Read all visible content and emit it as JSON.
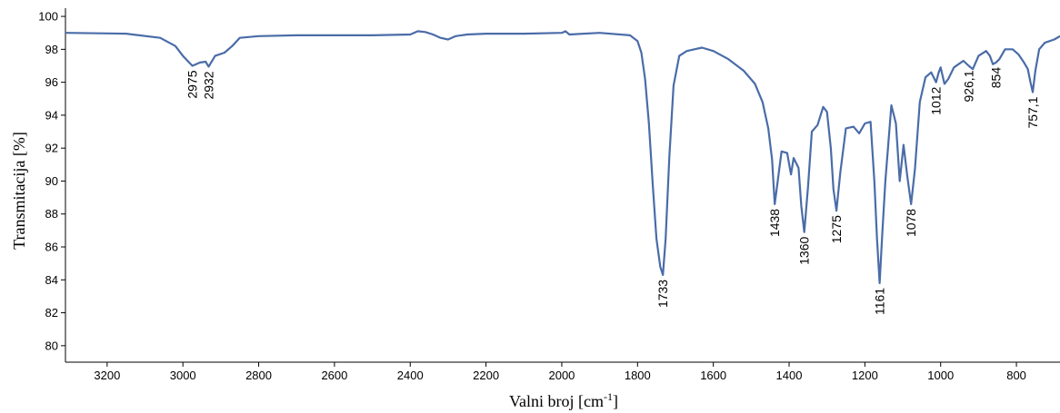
{
  "chart_data": {
    "type": "line",
    "title": "",
    "xlabel": "Valni broj [cm",
    "xlabel_sup": "-1",
    "xlabel_end": "]",
    "ylabel": "Transmitacija [%]",
    "xlim": [
      3310,
      685
    ],
    "ylim": [
      79,
      100.5
    ],
    "x_reversed": true,
    "grid": false,
    "x_ticks": [
      "3200",
      "3000",
      "2800",
      "2600",
      "2400",
      "2200",
      "2000",
      "1800",
      "1600",
      "1400",
      "1200",
      "1000",
      "800"
    ],
    "y_ticks": [
      "100",
      "98",
      "96",
      "94",
      "92",
      "90",
      "88",
      "86",
      "84",
      "82",
      "80"
    ],
    "series": [
      {
        "color": "#4a6ca8",
        "x": [
          3310,
          3150,
          3060,
          3020,
          3000,
          2975,
          2955,
          2940,
          2932,
          2915,
          2890,
          2870,
          2850,
          2800,
          2700,
          2600,
          2500,
          2400,
          2380,
          2360,
          2340,
          2320,
          2300,
          2280,
          2250,
          2200,
          2100,
          2000,
          1990,
          1980,
          1900,
          1820,
          1800,
          1790,
          1780,
          1770,
          1760,
          1750,
          1740,
          1733,
          1726,
          1716,
          1705,
          1690,
          1670,
          1650,
          1630,
          1600,
          1560,
          1520,
          1490,
          1470,
          1455,
          1445,
          1438,
          1430,
          1420,
          1405,
          1395,
          1388,
          1375,
          1368,
          1360,
          1350,
          1340,
          1325,
          1310,
          1300,
          1290,
          1283,
          1275,
          1265,
          1250,
          1230,
          1215,
          1200,
          1185,
          1175,
          1168,
          1161,
          1154,
          1146,
          1130,
          1118,
          1108,
          1098,
          1088,
          1078,
          1068,
          1055,
          1040,
          1025,
          1012,
          1005,
          1000,
          990,
          980,
          965,
          940,
          926,
          915,
          900,
          880,
          870,
          862,
          854,
          845,
          830,
          810,
          795,
          780,
          770,
          763,
          757,
          750,
          740,
          725,
          700,
          685
        ],
        "y": [
          99.0,
          98.95,
          98.7,
          98.2,
          97.6,
          97.0,
          97.2,
          97.25,
          96.95,
          97.6,
          97.8,
          98.2,
          98.7,
          98.8,
          98.85,
          98.85,
          98.85,
          98.9,
          99.1,
          99.05,
          98.9,
          98.7,
          98.6,
          98.8,
          98.9,
          98.95,
          98.95,
          99.0,
          99.1,
          98.9,
          99.0,
          98.85,
          98.5,
          97.8,
          96.2,
          93.5,
          89.8,
          86.5,
          84.8,
          84.3,
          86.5,
          91.5,
          95.8,
          97.6,
          97.9,
          98.0,
          98.1,
          97.9,
          97.4,
          96.7,
          95.9,
          94.8,
          93.2,
          91.3,
          88.6,
          90.0,
          91.8,
          91.7,
          90.4,
          91.4,
          90.8,
          88.5,
          86.9,
          89.7,
          93.0,
          93.4,
          94.5,
          94.2,
          92.0,
          89.5,
          88.2,
          90.5,
          93.2,
          93.3,
          92.9,
          93.5,
          93.6,
          90.0,
          86.5,
          83.8,
          86.8,
          90.0,
          94.6,
          93.5,
          90.0,
          92.2,
          90.3,
          88.6,
          90.7,
          94.8,
          96.3,
          96.6,
          96.0,
          96.6,
          96.9,
          95.9,
          96.2,
          96.9,
          97.3,
          97.0,
          96.8,
          97.6,
          97.9,
          97.6,
          97.1,
          97.2,
          97.4,
          98.0,
          98.0,
          97.7,
          97.2,
          96.8,
          96.0,
          95.4,
          96.7,
          98.0,
          98.4,
          98.6,
          98.8
        ]
      }
    ],
    "annotations": [
      {
        "x": 2975,
        "y": 97.0,
        "text": "2975"
      },
      {
        "x": 2932,
        "y": 96.95,
        "text": "2932"
      },
      {
        "x": 1733,
        "y": 84.3,
        "text": "1733"
      },
      {
        "x": 1438,
        "y": 88.6,
        "text": "1438"
      },
      {
        "x": 1360,
        "y": 86.9,
        "text": "1360"
      },
      {
        "x": 1275,
        "y": 88.2,
        "text": "1275"
      },
      {
        "x": 1161,
        "y": 83.8,
        "text": "1161"
      },
      {
        "x": 1078,
        "y": 88.6,
        "text": "1078"
      },
      {
        "x": 1012,
        "y": 96.0,
        "text": "1012"
      },
      {
        "x": 926,
        "y": 97.0,
        "text": "926,1"
      },
      {
        "x": 854,
        "y": 97.2,
        "text": "854"
      },
      {
        "x": 757,
        "y": 95.4,
        "text": "757,1"
      }
    ]
  }
}
